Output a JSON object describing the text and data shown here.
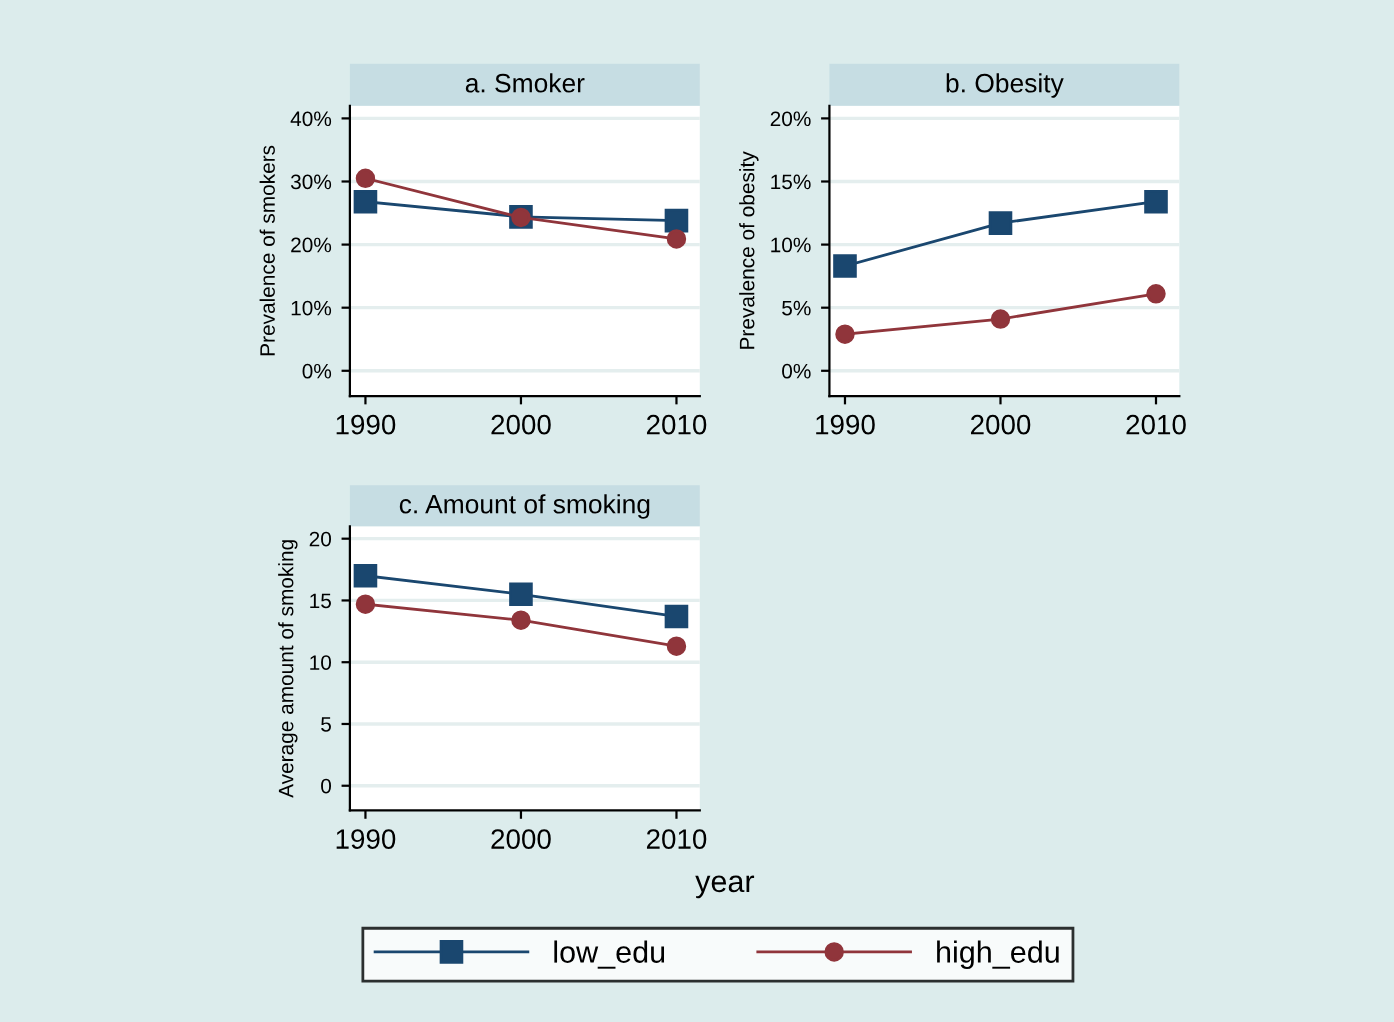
{
  "chart_data": [
    {
      "type": "line",
      "title": "a. Smoker",
      "ylabel": "Prevalence of smokers",
      "legend": "bottom",
      "x": [
        1990,
        2000,
        2010
      ],
      "xlim": [
        1989,
        2011.5
      ],
      "xticks": [
        1990,
        2000,
        2010
      ],
      "ylim": [
        -4,
        42
      ],
      "yticks": [
        {
          "value": 0,
          "label": "0%"
        },
        {
          "value": 10,
          "label": "10%"
        },
        {
          "value": 20,
          "label": "20%"
        },
        {
          "value": 30,
          "label": "30%"
        },
        {
          "value": 40,
          "label": "40%"
        }
      ],
      "grid": "y",
      "series": [
        {
          "name": "low_edu",
          "color": "#1a476f",
          "marker": "square",
          "values": [
            26.8,
            24.4,
            23.8
          ]
        },
        {
          "name": "high_edu",
          "color": "#90353b",
          "marker": "circle",
          "values": [
            30.5,
            24.3,
            20.9
          ]
        }
      ]
    },
    {
      "type": "line",
      "title": "b. Obesity",
      "ylabel": "Prevalence of obesity",
      "x": [
        1990,
        2000,
        2010
      ],
      "xlim": [
        1989,
        2011.5
      ],
      "xticks": [
        1990,
        2000,
        2010
      ],
      "ylim": [
        -2,
        21
      ],
      "yticks": [
        {
          "value": 0,
          "label": "0%"
        },
        {
          "value": 5,
          "label": "5%"
        },
        {
          "value": 10,
          "label": "10%"
        },
        {
          "value": 15,
          "label": "15%"
        },
        {
          "value": 20,
          "label": "20%"
        }
      ],
      "grid": "y",
      "series": [
        {
          "color": "#1a476f",
          "marker": "square",
          "values": [
            8.3,
            11.7,
            13.4
          ]
        },
        {
          "color": "#90353b",
          "marker": "circle",
          "values": [
            2.9,
            4.1,
            6.1
          ]
        }
      ]
    },
    {
      "type": "line",
      "title": "c. Amount of smoking",
      "ylabel": "Average amount of smoking",
      "xlabel": "year",
      "x": [
        1990,
        2000,
        2010
      ],
      "xlim": [
        1989,
        2011.5
      ],
      "xticks": [
        1990,
        2000,
        2010
      ],
      "ylim": [
        -2,
        21
      ],
      "yticks": [
        0,
        5,
        10,
        15,
        20
      ],
      "grid": "y",
      "series": [
        {
          "color": "#1a476f",
          "marker": "square",
          "values": [
            17.0,
            15.5,
            13.7
          ]
        },
        {
          "color": "#90353b",
          "marker": "circle",
          "values": [
            14.7,
            13.4,
            11.3
          ]
        }
      ]
    }
  ]
}
